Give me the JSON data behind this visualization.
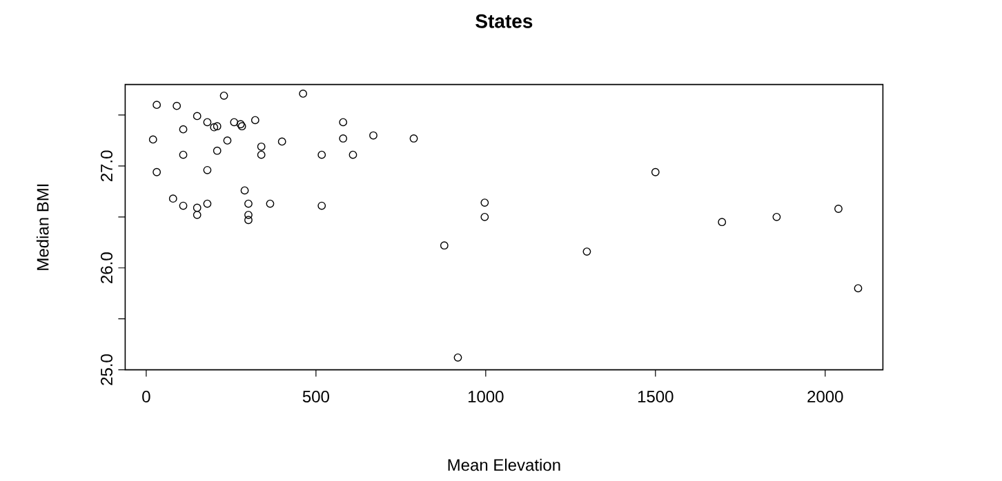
{
  "chart_data": {
    "type": "scatter",
    "title": "States",
    "xlabel": "Mean Elevation",
    "ylabel": "Median BMI",
    "x": [
      31,
      90,
      229,
      462,
      150,
      180,
      200,
      209,
      259,
      278,
      282,
      321,
      580,
      20,
      109,
      239,
      209,
      109,
      339,
      339,
      400,
      580,
      517,
      609,
      31,
      180,
      290,
      79,
      109,
      150,
      150,
      180,
      301,
      301,
      301,
      365,
      517,
      669,
      788,
      997,
      997,
      878,
      918,
      1298,
      1500,
      1696,
      1857,
      2039,
      2097
    ],
    "values": [
      27.6,
      27.59,
      27.69,
      27.71,
      27.49,
      27.43,
      27.38,
      27.39,
      27.43,
      27.41,
      27.39,
      27.45,
      27.43,
      27.26,
      27.36,
      27.25,
      27.15,
      27.11,
      27.19,
      27.11,
      27.24,
      27.27,
      27.11,
      27.11,
      26.94,
      26.96,
      26.76,
      26.68,
      26.61,
      26.59,
      26.52,
      26.63,
      26.63,
      26.52,
      26.47,
      26.63,
      26.61,
      27.3,
      27.27,
      26.64,
      26.5,
      26.22,
      25.12,
      26.16,
      26.94,
      26.45,
      26.5,
      26.58,
      25.8
    ],
    "color": "#000000",
    "marker": "circle",
    "xlim": [
      -62,
      2170
    ],
    "ylim": [
      25.0,
      27.8
    ],
    "xticks": [
      0,
      500,
      1000,
      1500,
      2000
    ],
    "yticks": [
      {
        "value": 25.0,
        "label": "25.0"
      },
      {
        "value": 25.5,
        "label": null
      },
      {
        "value": 26.0,
        "label": "26.0"
      },
      {
        "value": 26.5,
        "label": null
      },
      {
        "value": 27.0,
        "label": "27.0"
      },
      {
        "value": 27.5,
        "label": null
      }
    ]
  }
}
